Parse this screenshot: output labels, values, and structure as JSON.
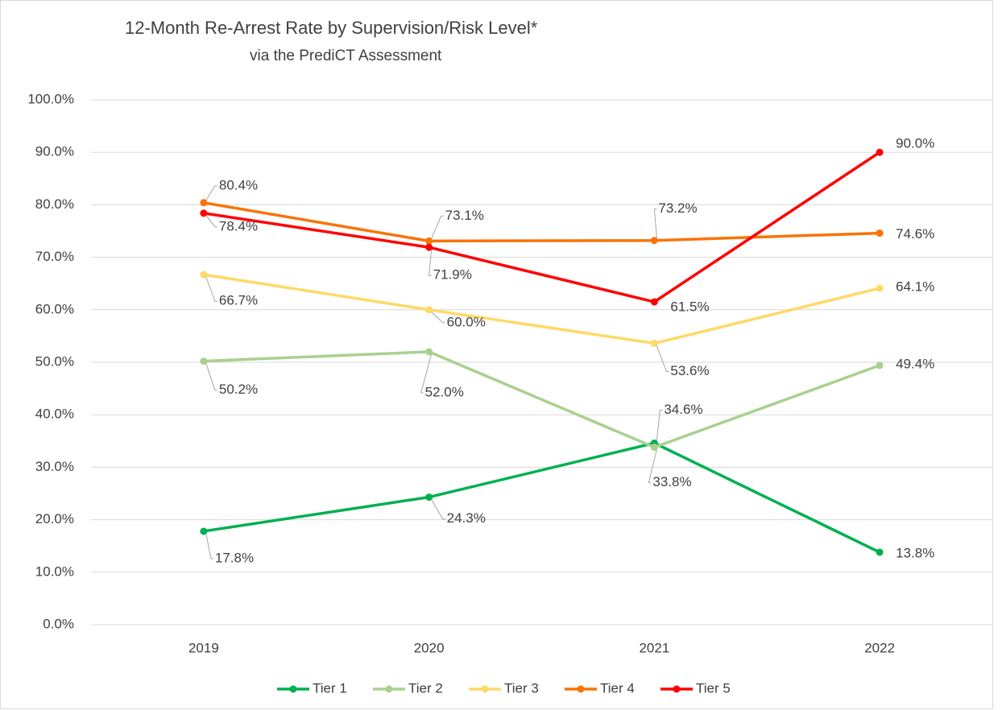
{
  "chart_data": {
    "type": "line",
    "title": "12-Month Re-Arrest Rate by Supervision/Risk  Level*",
    "subtitle": "via the PrediCT Assessment",
    "categories": [
      "2019",
      "2020",
      "2021",
      "2022"
    ],
    "ylim": [
      0,
      100
    ],
    "yticks": [
      {
        "value": 0,
        "label": "0.0%"
      },
      {
        "value": 10,
        "label": "10.0%"
      },
      {
        "value": 20,
        "label": "20.0%"
      },
      {
        "value": 30,
        "label": "30.0%"
      },
      {
        "value": 40,
        "label": "40.0%"
      },
      {
        "value": 50,
        "label": "50.0%"
      },
      {
        "value": 60,
        "label": "60.0%"
      },
      {
        "value": 70,
        "label": "70.0%"
      },
      {
        "value": 80,
        "label": "80.0%"
      },
      {
        "value": 90,
        "label": "90.0%"
      },
      {
        "value": 100,
        "label": "100.0%"
      }
    ],
    "grid": true,
    "legend": "bottom",
    "series": [
      {
        "name": "Tier 1",
        "color": "#00b050",
        "values": [
          17.8,
          24.3,
          34.6,
          13.8
        ],
        "value_labels": [
          "17.8%",
          "24.3%",
          "34.6%",
          "13.8%"
        ]
      },
      {
        "name": "Tier 2",
        "color": "#a9d18e",
        "values": [
          50.2,
          52.0,
          33.8,
          49.4
        ],
        "value_labels": [
          "50.2%",
          "52.0%",
          "33.8%",
          "49.4%"
        ]
      },
      {
        "name": "Tier 3",
        "color": "#ffd966",
        "values": [
          66.7,
          60.0,
          53.6,
          64.1
        ],
        "value_labels": [
          "66.7%",
          "60.0%",
          "53.6%",
          "64.1%"
        ]
      },
      {
        "name": "Tier 4",
        "color": "#f97306",
        "values": [
          80.4,
          73.1,
          73.2,
          74.6
        ],
        "value_labels": [
          "80.4%",
          "73.1%",
          "73.2%",
          "74.6%"
        ]
      },
      {
        "name": "Tier 5",
        "color": "#ff0000",
        "values": [
          78.4,
          71.9,
          61.5,
          90.0
        ],
        "value_labels": [
          "78.4%",
          "71.9%",
          "61.5%",
          "90.0%"
        ]
      }
    ]
  }
}
